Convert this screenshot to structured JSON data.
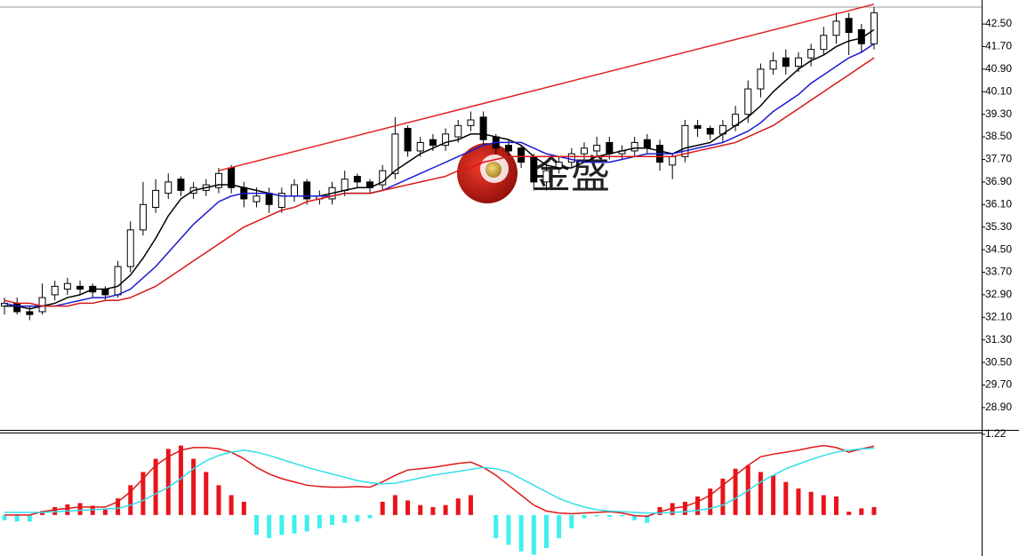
{
  "chart_data": [
    {
      "type": "candlestick",
      "watermark": "金盛",
      "open": [
        32.5,
        32.6,
        32.3,
        32.3,
        32.9,
        33.1,
        33.2,
        33.2,
        33.1,
        32.9,
        33.9,
        35.2,
        36.0,
        36.5,
        37.0,
        36.5,
        36.6,
        36.7,
        37.4,
        36.7,
        36.2,
        36.5,
        36.0,
        36.4,
        36.9,
        36.3,
        36.3,
        36.6,
        37.1,
        36.9,
        36.8,
        37.2,
        38.8,
        38.0,
        38.4,
        38.2,
        38.5,
        38.9,
        39.2,
        38.5,
        38.2,
        38.1,
        37.8,
        36.9,
        37.4,
        37.6,
        37.9,
        38.0,
        38.3,
        37.9,
        38.0,
        38.4,
        38.2,
        37.5,
        37.8,
        38.9,
        38.8,
        38.6,
        38.9,
        39.3,
        40.2,
        40.9,
        41.3,
        41.0,
        41.3,
        41.6,
        42.1,
        42.7,
        42.3,
        41.8
      ],
      "high": [
        32.8,
        32.8,
        32.5,
        33.3,
        33.4,
        33.5,
        33.4,
        33.3,
        33.2,
        34.1,
        35.5,
        36.9,
        37.0,
        37.2,
        37.1,
        36.9,
        37.0,
        37.4,
        37.5,
        36.9,
        36.7,
        36.7,
        36.7,
        37.0,
        37.0,
        36.6,
        36.9,
        37.3,
        37.2,
        37.0,
        37.5,
        39.2,
        38.9,
        38.5,
        38.6,
        38.8,
        39.1,
        39.4,
        39.4,
        38.6,
        38.4,
        38.2,
        37.9,
        37.5,
        37.8,
        38.1,
        38.3,
        38.5,
        38.5,
        38.2,
        38.5,
        38.6,
        38.4,
        37.9,
        39.1,
        39.1,
        38.9,
        39.1,
        39.6,
        40.5,
        41.1,
        41.5,
        41.6,
        41.5,
        41.8,
        42.4,
        42.9,
        42.9,
        42.5,
        43.1
      ],
      "low": [
        32.2,
        32.2,
        32.0,
        32.2,
        32.7,
        32.9,
        32.9,
        32.8,
        32.7,
        32.8,
        33.7,
        35.0,
        35.8,
        36.3,
        36.4,
        36.3,
        36.4,
        36.5,
        36.5,
        36.0,
        36.0,
        35.8,
        35.8,
        36.2,
        36.1,
        36.1,
        36.1,
        36.4,
        36.7,
        36.5,
        36.6,
        37.0,
        37.8,
        37.8,
        38.0,
        38.0,
        38.3,
        38.7,
        38.2,
        37.9,
        37.8,
        37.4,
        36.6,
        36.6,
        37.2,
        37.4,
        37.7,
        37.8,
        37.7,
        37.7,
        37.8,
        37.9,
        37.3,
        37.0,
        37.6,
        38.5,
        38.4,
        38.3,
        38.7,
        39.0,
        39.9,
        40.7,
        40.7,
        40.8,
        41.0,
        41.4,
        41.8,
        41.4,
        41.5,
        41.6
      ],
      "close": [
        32.6,
        32.3,
        32.2,
        32.8,
        33.2,
        33.3,
        33.1,
        33.0,
        32.9,
        33.9,
        35.2,
        36.1,
        36.6,
        36.9,
        36.6,
        36.7,
        36.8,
        37.2,
        36.7,
        36.3,
        36.4,
        36.1,
        36.5,
        36.8,
        36.3,
        36.4,
        36.7,
        37.0,
        36.9,
        36.7,
        37.3,
        38.6,
        38.0,
        38.3,
        38.2,
        38.6,
        38.9,
        39.1,
        38.4,
        38.1,
        38.0,
        37.6,
        36.9,
        37.3,
        37.6,
        37.9,
        38.1,
        38.2,
        37.9,
        38.0,
        38.3,
        38.1,
        37.6,
        37.8,
        38.9,
        38.8,
        38.6,
        38.9,
        39.3,
        40.2,
        40.9,
        41.2,
        41.0,
        41.3,
        41.6,
        42.1,
        42.6,
        42.2,
        41.8,
        42.9
      ],
      "up_color": "#ffffff",
      "down_color": "#000000",
      "series": [
        {
          "color": "#000000",
          "values": [
            32.5,
            32.5,
            32.4,
            32.5,
            32.6,
            32.8,
            32.9,
            33.1,
            33.1,
            33.2,
            33.6,
            34.2,
            34.9,
            35.7,
            36.3,
            36.6,
            36.7,
            36.8,
            36.8,
            36.7,
            36.6,
            36.5,
            36.4,
            36.4,
            36.4,
            36.4,
            36.5,
            36.6,
            36.7,
            36.7,
            36.9,
            37.3,
            37.6,
            37.9,
            38.1,
            38.3,
            38.4,
            38.6,
            38.6,
            38.5,
            38.4,
            38.2,
            37.8,
            37.5,
            37.4,
            37.4,
            37.6,
            37.8,
            37.9,
            38.0,
            38.1,
            38.1,
            38.0,
            37.9,
            38.1,
            38.2,
            38.3,
            38.6,
            38.9,
            39.2,
            39.6,
            40.1,
            40.5,
            40.9,
            41.2,
            41.4,
            41.7,
            41.9,
            42.0,
            42.3
          ]
        },
        {
          "color": "#1a1ad0",
          "values": [
            32.6,
            32.5,
            32.5,
            32.5,
            32.5,
            32.6,
            32.7,
            32.8,
            32.8,
            32.9,
            33.1,
            33.5,
            33.9,
            34.4,
            34.9,
            35.4,
            35.8,
            36.2,
            36.4,
            36.5,
            36.5,
            36.5,
            36.4,
            36.4,
            36.4,
            36.4,
            36.4,
            36.5,
            36.5,
            36.5,
            36.6,
            36.8,
            37.0,
            37.2,
            37.4,
            37.6,
            37.8,
            38.0,
            38.2,
            38.3,
            38.3,
            38.3,
            38.1,
            37.9,
            37.8,
            37.7,
            37.6,
            37.6,
            37.6,
            37.7,
            37.8,
            37.9,
            37.9,
            37.9,
            38.0,
            38.1,
            38.2,
            38.3,
            38.5,
            38.7,
            39.0,
            39.4,
            39.7,
            40.0,
            40.4,
            40.7,
            41.0,
            41.3,
            41.5,
            41.8
          ]
        },
        {
          "color": "#d81818",
          "values": [
            32.7,
            32.6,
            32.6,
            32.5,
            32.5,
            32.5,
            32.6,
            32.6,
            32.7,
            32.7,
            32.8,
            33.0,
            33.2,
            33.5,
            33.8,
            34.1,
            34.4,
            34.7,
            35.0,
            35.3,
            35.5,
            35.7,
            35.9,
            36.0,
            36.2,
            36.3,
            36.4,
            36.5,
            36.5,
            36.5,
            36.6,
            36.7,
            36.8,
            36.9,
            37.0,
            37.1,
            37.3,
            37.4,
            37.6,
            37.7,
            37.8,
            37.8,
            37.8,
            37.8,
            37.8,
            37.8,
            37.8,
            37.8,
            37.8,
            37.8,
            37.8,
            37.8,
            37.8,
            37.8,
            37.9,
            38.0,
            38.1,
            38.2,
            38.3,
            38.5,
            38.7,
            38.9,
            39.2,
            39.5,
            39.8,
            40.1,
            40.4,
            40.7,
            41.0,
            41.3
          ]
        }
      ],
      "trendline": {
        "x": [
          17,
          69
        ],
        "y": [
          37.3,
          43.2
        ],
        "color": "#e02020"
      },
      "ylim": [
        28.11,
        43.1
      ],
      "yticks": [
        {
          "value": 42.5,
          "label": "42.50"
        },
        {
          "value": 41.7,
          "label": "41.70"
        },
        {
          "value": 40.9,
          "label": "40.90"
        },
        {
          "value": 40.1,
          "label": "40.10"
        },
        {
          "value": 39.3,
          "label": "39.30"
        },
        {
          "value": 38.5,
          "label": "38.50"
        },
        {
          "value": 37.7,
          "label": "37.70"
        },
        {
          "value": 36.9,
          "label": "36.90"
        },
        {
          "value": 36.1,
          "label": "36.10"
        },
        {
          "value": 35.3,
          "label": "35.30"
        },
        {
          "value": 34.5,
          "label": "34.50"
        },
        {
          "value": 33.7,
          "label": "33.70"
        },
        {
          "value": 32.9,
          "label": "32.90"
        },
        {
          "value": 32.1,
          "label": "32.10"
        },
        {
          "value": 31.3,
          "label": "31.30"
        },
        {
          "value": 30.5,
          "label": "30.50"
        },
        {
          "value": 29.7,
          "label": "29.70"
        },
        {
          "value": 28.9,
          "label": "28.90"
        }
      ]
    },
    {
      "type": "macd",
      "values": [
        -0.08,
        -0.1,
        -0.1,
        0.06,
        0.12,
        0.16,
        0.18,
        0.14,
        0.1,
        0.25,
        0.45,
        0.65,
        0.85,
        1.0,
        1.05,
        0.85,
        0.65,
        0.45,
        0.3,
        0.2,
        -0.3,
        -0.35,
        -0.3,
        -0.28,
        -0.25,
        -0.2,
        -0.15,
        -0.12,
        -0.1,
        -0.05,
        0.2,
        0.3,
        0.22,
        0.15,
        0.12,
        0.15,
        0.25,
        0.3,
        0.0,
        -0.35,
        -0.45,
        -0.55,
        -0.6,
        -0.5,
        -0.35,
        -0.2,
        -0.05,
        -0.02,
        -0.03,
        -0.02,
        -0.08,
        -0.12,
        0.12,
        0.18,
        0.2,
        0.28,
        0.4,
        0.55,
        0.7,
        0.75,
        0.65,
        0.6,
        0.5,
        0.4,
        0.35,
        0.3,
        0.28,
        0.05,
        0.1,
        0.12
      ],
      "up_color": "#e8141b",
      "down_color": "#3ff0f0",
      "series": [
        {
          "color": "#e01818",
          "values": [
            0.0,
            0.0,
            0.0,
            0.05,
            0.08,
            0.1,
            0.12,
            0.12,
            0.12,
            0.2,
            0.35,
            0.55,
            0.75,
            0.88,
            0.98,
            1.02,
            1.02,
            1.0,
            0.95,
            0.85,
            0.72,
            0.62,
            0.55,
            0.5,
            0.45,
            0.43,
            0.42,
            0.42,
            0.43,
            0.42,
            0.5,
            0.6,
            0.68,
            0.7,
            0.72,
            0.75,
            0.78,
            0.8,
            0.72,
            0.6,
            0.45,
            0.3,
            0.15,
            0.06,
            0.03,
            0.02,
            0.03,
            0.04,
            0.05,
            0.03,
            -0.01,
            -0.02,
            0.05,
            0.1,
            0.13,
            0.2,
            0.3,
            0.45,
            0.6,
            0.75,
            0.88,
            0.92,
            0.95,
            0.98,
            1.02,
            1.05,
            1.02,
            0.95,
            1.0,
            1.04
          ]
        },
        {
          "color": "#30e0e8",
          "values": [
            0.04,
            0.04,
            0.04,
            0.04,
            0.05,
            0.06,
            0.07,
            0.08,
            0.09,
            0.1,
            0.15,
            0.22,
            0.32,
            0.42,
            0.55,
            0.7,
            0.82,
            0.9,
            0.95,
            0.98,
            0.95,
            0.9,
            0.84,
            0.78,
            0.72,
            0.67,
            0.62,
            0.57,
            0.52,
            0.49,
            0.47,
            0.48,
            0.52,
            0.56,
            0.6,
            0.63,
            0.66,
            0.69,
            0.72,
            0.7,
            0.65,
            0.55,
            0.45,
            0.35,
            0.25,
            0.18,
            0.12,
            0.08,
            0.06,
            0.05,
            0.04,
            0.03,
            0.03,
            0.04,
            0.05,
            0.07,
            0.1,
            0.15,
            0.25,
            0.37,
            0.5,
            0.6,
            0.7,
            0.77,
            0.84,
            0.9,
            0.95,
            0.98,
            1.0,
            1.01
          ]
        }
      ],
      "ylim": [
        -0.62,
        1.26
      ],
      "yticks": [
        1.22
      ]
    }
  ]
}
